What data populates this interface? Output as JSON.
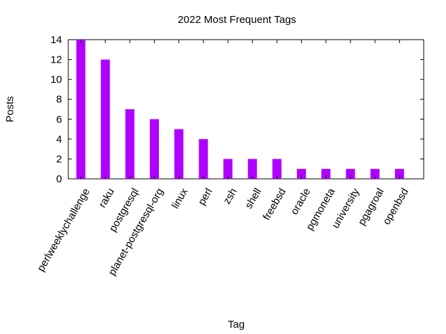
{
  "chart_data": {
    "type": "bar",
    "title": "2022 Most Frequent Tags",
    "xlabel": "Tag",
    "ylabel": "Posts",
    "categories": [
      "perlweeklychallenge",
      "raku",
      "postgresql",
      "planet-postgresql-org",
      "linux",
      "perl",
      "zsh",
      "shell",
      "freebsd",
      "oracle",
      "pgmoneta",
      "university",
      "pgagroal",
      "openbsd"
    ],
    "values": [
      14,
      12,
      7,
      6,
      5,
      4,
      2,
      2,
      2,
      1,
      1,
      1,
      1,
      1
    ],
    "ylim": [
      0,
      14
    ],
    "yticks": [
      0,
      2,
      4,
      6,
      8,
      10,
      12,
      14
    ],
    "grid": false,
    "legend": "none",
    "bar_color": "#b000ff"
  }
}
